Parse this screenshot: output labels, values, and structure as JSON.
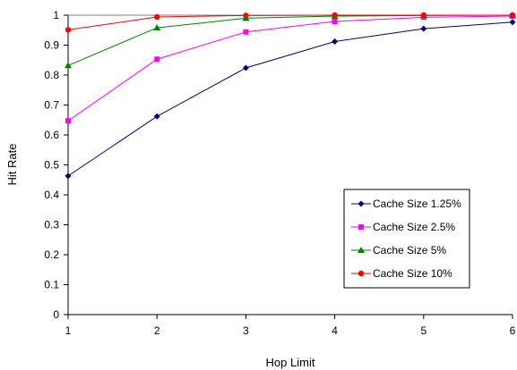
{
  "chart_data": {
    "type": "line",
    "title": "",
    "xlabel": "Hop Limit",
    "ylabel": "Hit Rate",
    "x": [
      1,
      2,
      3,
      4,
      5,
      6
    ],
    "xlim": [
      1,
      6
    ],
    "ylim": [
      0,
      1
    ],
    "x_ticks": [
      "1",
      "2",
      "3",
      "4",
      "5",
      "6"
    ],
    "y_ticks": [
      "0",
      "0.1",
      "0.2",
      "0.3",
      "0.4",
      "0.5",
      "0.6",
      "0.7",
      "0.8",
      "0.9",
      "1"
    ],
    "grid": false,
    "legend_position": "bottom-right",
    "series": [
      {
        "name": "Cache Size 1.25%",
        "color": "#000080",
        "marker": "diamond",
        "values": [
          0.463,
          0.662,
          0.824,
          0.912,
          0.955,
          0.977
        ]
      },
      {
        "name": "Cache Size 2.5%",
        "color": "#ff00ff",
        "marker": "square",
        "values": [
          0.647,
          0.853,
          0.944,
          0.979,
          0.993,
          0.997
        ]
      },
      {
        "name": "Cache Size 5%",
        "color": "#008000",
        "marker": "triangle",
        "values": [
          0.832,
          0.958,
          0.99,
          0.997,
          0.999,
          1.0
        ]
      },
      {
        "name": "Cache Size 10%",
        "color": "#ff0000",
        "marker": "circle",
        "values": [
          0.951,
          0.994,
          0.999,
          1.0,
          1.0,
          1.0
        ]
      }
    ]
  }
}
